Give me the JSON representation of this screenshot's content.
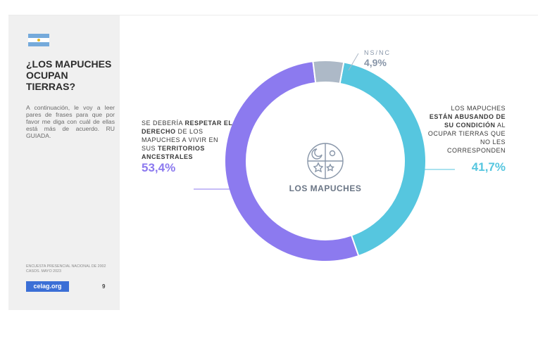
{
  "sidebar": {
    "title": "¿LOS MAPUCHES\nOCUPAN\nTIERRAS?",
    "intro": "A continuación, le voy a leer pares de frases para que por favor me diga con cuál de ellas está más de acuerdo. RU GUIADA.",
    "source": "ENCUESTA PRESENCIAL NACIONAL DE 2002 CASOS. MAYO 2023",
    "brand": "celag.org",
    "page_number": "9"
  },
  "center_label": "LOS MAPUCHES",
  "labels": {
    "left": {
      "pre": "SE DEBERÍA ",
      "bold1": "RESPETAR EL DERECHO",
      "mid": " DE LOS MAPUCHES A VIVIR EN SUS ",
      "bold2": "TERRITORIOS ANCESTRALES",
      "pct": "53,4%"
    },
    "right": {
      "pre": "LOS MAPUCHES ",
      "bold": "ESTÁN ABUSANDO DE SU CONDICIÓN",
      "post": " AL OCUPAR TIERRAS QUE NO LES CORRESPONDEN",
      "pct": "41,7%"
    },
    "top": {
      "text": "NS/NC",
      "pct": "4,9%"
    }
  },
  "chart_data": {
    "type": "pie",
    "donut": true,
    "categories": [
      "Los mapuches están abusando de su condición al ocupar tierras que no les corresponden",
      "Se debería respetar el derecho de los mapuches a vivir en sus territorios ancestrales",
      "NS/NC"
    ],
    "values": [
      41.7,
      53.4,
      4.9
    ],
    "colors": [
      "#56c6df",
      "#8c7aef",
      "#adb9c7"
    ]
  },
  "colors": {
    "accent_purple": "#8c7aef",
    "accent_cyan": "#56c6df",
    "ns_gray": "#adb9c7",
    "brand_blue": "#3b6fd6"
  },
  "icons": {
    "center_emblem": "kultrun-icon",
    "flag": "argentina-flag-icon"
  }
}
